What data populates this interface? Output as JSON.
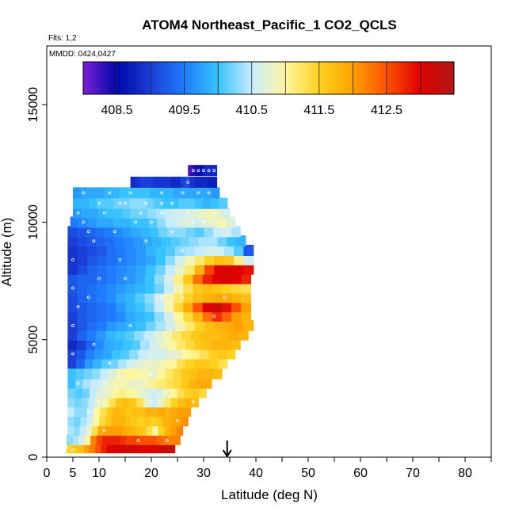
{
  "chart_data": {
    "type": "heatmap",
    "title": "ATOM4 Northeast_Pacific_1 CO2_QCLS",
    "flights_label": "Flts: 1,2",
    "dates_label": "MMDD: 0424,0427",
    "xlabel": "Latitude (deg N)",
    "ylabel": "Altitude (m)",
    "xlim": [
      0,
      85
    ],
    "ylim": [
      0,
      17500
    ],
    "x_ticks": [
      0,
      10,
      20,
      30,
      40,
      50,
      60,
      70,
      80
    ],
    "x_tick_labels": [
      "0",
      "5",
      "10",
      "20",
      "30",
      "40",
      "50",
      "60",
      "70",
      "80"
    ],
    "x_tick_label_values": [
      0,
      5,
      10,
      20,
      30,
      40,
      50,
      60,
      70,
      80
    ],
    "y_ticks": [
      0,
      5000,
      10000,
      15000
    ],
    "y_tick_labels": [
      "0",
      "5000",
      "10000",
      "15000"
    ],
    "colorbar": {
      "min": 408.0,
      "max": 413.5,
      "tick_values": [
        408.5,
        409.5,
        410.5,
        411.5,
        412.5
      ],
      "tick_labels": [
        "408.5",
        "409.5",
        "410.5",
        "411.5",
        "412.5"
      ],
      "colors": [
        "#7a1fd6",
        "#0008a8",
        "#1a3fd9",
        "#1f7cff",
        "#36c3ff",
        "#c8ecff",
        "#fff6a0",
        "#ffd21f",
        "#ffa000",
        "#ff5200",
        "#e00000",
        "#b01818"
      ]
    },
    "arrow_latitude": 34.5,
    "bands": [
      {
        "alt": 400,
        "lat_min": 3.8,
        "lat_max": 24.5,
        "values": [
          411.5,
          411.6,
          411.7,
          412.0,
          412.2,
          412.5,
          412.8,
          413.0,
          413.0,
          413.1,
          413.2,
          413.2,
          413.1,
          413.0,
          413.0,
          413.1,
          413.2,
          413.3,
          413.3
        ]
      },
      {
        "alt": 750,
        "lat_min": 3.8,
        "lat_max": 25.5,
        "values": [
          410.3,
          410.4,
          410.6,
          411.0,
          412.2,
          412.6,
          412.8,
          412.8,
          412.8,
          412.7,
          412.6,
          412.6,
          412.5,
          412.5,
          412.5,
          412.4,
          412.3,
          412.2,
          412.2
        ]
      },
      {
        "alt": 1150,
        "lat_min": 4.0,
        "lat_max": 26.0,
        "values": [
          410.4,
          410.3,
          410.5,
          410.8,
          411.3,
          411.9,
          412.0,
          412.0,
          412.0,
          411.9,
          411.8,
          411.7,
          411.6,
          411.3,
          411.0,
          411.5,
          411.8,
          412.0,
          412.2
        ]
      },
      {
        "alt": 1550,
        "lat_min": 4.0,
        "lat_max": 27.0,
        "values": [
          410.3,
          410.2,
          410.4,
          410.6,
          411.0,
          411.4,
          411.6,
          411.8,
          411.8,
          411.7,
          411.6,
          411.5,
          411.6,
          411.5,
          411.6,
          411.8,
          411.9,
          412.0,
          412.1
        ]
      },
      {
        "alt": 1950,
        "lat_min": 4.0,
        "lat_max": 27.5,
        "values": [
          410.5,
          410.3,
          410.3,
          410.5,
          411.0,
          411.3,
          411.6,
          411.8,
          411.7,
          411.6,
          411.7,
          411.7,
          411.8,
          411.8,
          411.9,
          411.8,
          411.9,
          412.0,
          412.0
        ]
      },
      {
        "alt": 2350,
        "lat_min": 4.0,
        "lat_max": 29.0,
        "values": [
          410.3,
          410.2,
          410.3,
          410.5,
          410.8,
          410.9,
          411.3,
          411.6,
          411.7,
          411.6,
          411.3,
          410.8,
          410.5,
          410.8,
          411.2,
          411.5,
          411.7,
          411.8,
          411.7
        ]
      },
      {
        "alt": 2750,
        "lat_min": 4.0,
        "lat_max": 30.5,
        "values": [
          410.2,
          410.1,
          410.2,
          410.5,
          410.7,
          410.8,
          411.0,
          411.1,
          411.0,
          410.9,
          410.7,
          410.6,
          410.6,
          410.8,
          411.0,
          411.3,
          411.5,
          411.6,
          411.4
        ]
      },
      {
        "alt": 3150,
        "lat_min": 4.0,
        "lat_max": 31.5,
        "values": [
          410.0,
          410.2,
          410.4,
          410.5,
          410.6,
          410.8,
          410.9,
          410.9,
          410.8,
          410.8,
          410.9,
          411.1,
          411.2,
          411.3,
          411.4,
          411.6,
          411.8,
          411.9,
          411.9
        ]
      },
      {
        "alt": 3550,
        "lat_min": 4.0,
        "lat_max": 33.5,
        "values": [
          410.0,
          410.1,
          410.2,
          410.3,
          410.5,
          410.7,
          410.9,
          411.0,
          411.0,
          410.9,
          410.8,
          411.0,
          411.2,
          411.4,
          411.6,
          411.7,
          411.8,
          411.8,
          411.7
        ]
      },
      {
        "alt": 4000,
        "lat_min": 4.0,
        "lat_max": 34.5,
        "values": [
          409.0,
          409.3,
          409.7,
          409.9,
          410.1,
          410.2,
          410.4,
          410.6,
          410.7,
          410.8,
          410.8,
          410.9,
          411.0,
          411.3,
          411.5,
          411.6,
          411.6,
          411.5,
          411.3
        ]
      },
      {
        "alt": 4400,
        "lat_min": 4.0,
        "lat_max": 36.0,
        "values": [
          409.0,
          409.2,
          409.5,
          409.7,
          409.8,
          410.0,
          410.1,
          410.3,
          410.5,
          410.6,
          410.6,
          410.7,
          410.8,
          411.0,
          411.1,
          411.3,
          411.5,
          411.6,
          411.5
        ]
      },
      {
        "alt": 4800,
        "lat_min": 4.0,
        "lat_max": 37.0,
        "values": [
          408.8,
          409.0,
          409.3,
          409.6,
          409.8,
          409.9,
          410.0,
          410.1,
          410.4,
          410.6,
          410.8,
          411.0,
          411.2,
          411.4,
          411.6,
          411.7,
          411.8,
          411.8,
          411.7
        ]
      },
      {
        "alt": 5200,
        "lat_min": 4.0,
        "lat_max": 38.5,
        "values": [
          409.0,
          409.3,
          409.5,
          409.7,
          409.9,
          410.0,
          410.1,
          410.3,
          410.5,
          410.7,
          410.9,
          411.2,
          411.4,
          411.6,
          411.7,
          411.7,
          411.8,
          411.9,
          411.8
        ]
      },
      {
        "alt": 5600,
        "lat_min": 4.0,
        "lat_max": 39.5,
        "values": [
          409.0,
          409.2,
          409.4,
          409.5,
          409.7,
          409.8,
          409.9,
          410.0,
          410.2,
          410.4,
          410.6,
          410.9,
          411.2,
          411.5,
          411.7,
          411.8,
          411.9,
          412.0,
          411.8
        ]
      },
      {
        "alt": 6000,
        "lat_min": 4.0,
        "lat_max": 39.0,
        "values": [
          409.0,
          409.2,
          409.3,
          409.4,
          409.5,
          409.6,
          409.8,
          409.9,
          410.0,
          410.3,
          410.6,
          411.0,
          411.4,
          411.8,
          412.3,
          412.7,
          412.4,
          412.0,
          411.8
        ]
      },
      {
        "alt": 6400,
        "lat_min": 4.0,
        "lat_max": 39.0,
        "values": [
          409.1,
          409.2,
          409.3,
          409.4,
          409.5,
          409.7,
          409.9,
          410.0,
          410.2,
          410.5,
          410.9,
          411.4,
          411.9,
          412.5,
          413.0,
          413.2,
          412.9,
          412.5,
          412.0
        ]
      },
      {
        "alt": 6800,
        "lat_min": 4.0,
        "lat_max": 39.0,
        "values": [
          409.1,
          409.3,
          409.4,
          409.5,
          409.6,
          409.8,
          409.9,
          410.1,
          410.3,
          410.6,
          410.9,
          411.2,
          411.5,
          411.7,
          411.8,
          411.9,
          411.9,
          411.8,
          411.7
        ]
      },
      {
        "alt": 7200,
        "lat_min": 4.0,
        "lat_max": 39.0,
        "values": [
          409.2,
          409.3,
          409.4,
          409.5,
          409.6,
          409.7,
          409.8,
          409.9,
          410.0,
          410.2,
          410.5,
          410.9,
          411.3,
          411.6,
          411.7,
          411.6,
          411.5,
          411.4,
          411.3
        ]
      },
      {
        "alt": 7600,
        "lat_min": 4.0,
        "lat_max": 39.0,
        "values": [
          409.2,
          409.3,
          409.3,
          409.4,
          409.5,
          409.6,
          409.7,
          409.8,
          410.0,
          410.3,
          410.6,
          411.1,
          411.6,
          412.3,
          412.8,
          413.0,
          413.1,
          413.0,
          412.8
        ]
      },
      {
        "alt": 8000,
        "lat_min": 4.0,
        "lat_max": 39.5,
        "values": [
          408.9,
          409.1,
          409.3,
          409.4,
          409.5,
          409.6,
          409.7,
          409.8,
          410.0,
          410.2,
          410.5,
          410.8,
          411.2,
          411.8,
          412.6,
          413.0,
          413.1,
          413.0,
          412.9
        ]
      },
      {
        "alt": 8400,
        "lat_min": 4.0,
        "lat_max": 39.5,
        "values": [
          408.9,
          409.0,
          409.2,
          409.3,
          409.4,
          409.5,
          409.6,
          409.7,
          409.8,
          410.0,
          410.3,
          410.6,
          410.9,
          411.2,
          411.5,
          411.7,
          411.6,
          411.1,
          410.6
        ]
      },
      {
        "alt": 8800,
        "lat_min": 4.0,
        "lat_max": 39.5,
        "values": [
          408.9,
          409.0,
          409.1,
          409.2,
          409.4,
          409.5,
          409.6,
          409.7,
          409.9,
          410.0,
          410.1,
          410.3,
          410.4,
          410.5,
          410.6,
          410.6,
          410.4,
          410.1,
          409.2
        ]
      },
      {
        "alt": 9200,
        "lat_min": 4.0,
        "lat_max": 38.0,
        "values": [
          409.0,
          409.1,
          409.2,
          409.3,
          409.4,
          409.5,
          409.6,
          409.7,
          409.8,
          409.9,
          410.0,
          410.1,
          410.2,
          410.3,
          410.4,
          410.4,
          410.2,
          410.0,
          409.9
        ]
      },
      {
        "alt": 9600,
        "lat_min": 4.0,
        "lat_max": 37.0,
        "values": [
          409.1,
          409.2,
          409.3,
          409.4,
          409.5,
          409.6,
          409.7,
          409.8,
          409.9,
          410.0,
          410.2,
          410.3,
          410.3,
          410.2,
          410.1,
          410.3,
          410.5,
          410.6,
          410.4
        ]
      },
      {
        "alt": 10000,
        "lat_min": 4.5,
        "lat_max": 36.0,
        "values": [
          409.5,
          409.6,
          409.7,
          409.8,
          409.8,
          409.9,
          409.9,
          410.0,
          410.0,
          410.1,
          410.3,
          410.5,
          410.6,
          410.7,
          410.6,
          410.7,
          410.8,
          410.9,
          410.7
        ]
      },
      {
        "alt": 10400,
        "lat_min": 5.0,
        "lat_max": 35.0,
        "values": [
          409.7,
          409.8,
          409.8,
          409.9,
          410.0,
          410.0,
          410.1,
          410.2,
          410.2,
          410.3,
          410.4,
          410.5,
          410.6,
          410.6,
          410.7,
          410.8,
          410.9,
          410.8,
          410.6
        ]
      },
      {
        "alt": 10800,
        "lat_min": 5.0,
        "lat_max": 34.5,
        "values": [
          409.9,
          409.9,
          410.0,
          410.1,
          410.1,
          410.2,
          410.2,
          410.3,
          410.3,
          410.2,
          410.1,
          410.0,
          410.0,
          410.1,
          410.1,
          410.0,
          409.9,
          410.0,
          410.1
        ]
      },
      {
        "alt": 11250,
        "lat_min": 5.0,
        "lat_max": 33.0,
        "values": [
          409.7,
          409.8,
          409.8,
          409.8,
          409.9,
          409.9,
          410.0,
          410.0,
          410.0,
          410.0,
          409.9,
          409.9,
          409.9,
          409.8,
          409.8,
          409.8,
          409.8,
          409.8,
          409.7
        ]
      },
      {
        "alt": 11700,
        "lat_min": 16.0,
        "lat_max": 32.5,
        "values": [
          408.8,
          408.9,
          409.0,
          409.0,
          409.0,
          408.9,
          408.9,
          408.9,
          408.9,
          408.8,
          408.8,
          409.0,
          409.1,
          408.9,
          408.8,
          408.8,
          408.8,
          408.7,
          408.7
        ]
      },
      {
        "alt": 12200,
        "lat_min": 27.0,
        "lat_max": 32.5,
        "values": [
          408.2,
          408.3,
          408.4,
          408.5,
          408.6,
          408.7,
          408.8,
          408.8,
          408.8,
          408.8
        ]
      }
    ],
    "obs_points": [
      [
        3.8,
        400
      ],
      [
        5,
        300
      ],
      [
        17.5,
        700
      ],
      [
        23,
        700
      ],
      [
        11,
        1150
      ],
      [
        8,
        1950
      ],
      [
        10,
        2350
      ],
      [
        20,
        2350
      ],
      [
        25,
        1550
      ],
      [
        28,
        2350
      ],
      [
        6,
        3150
      ],
      [
        11,
        3150
      ],
      [
        20,
        3550
      ],
      [
        5,
        4400
      ],
      [
        5,
        5600
      ],
      [
        9,
        4800
      ],
      [
        12,
        4000
      ],
      [
        16,
        5600
      ],
      [
        6,
        6400
      ],
      [
        8,
        6800
      ],
      [
        5,
        7200
      ],
      [
        10,
        7600
      ],
      [
        15,
        7600
      ],
      [
        22,
        6800
      ],
      [
        26,
        6800
      ],
      [
        32,
        6000
      ],
      [
        34,
        6800
      ],
      [
        5,
        8400
      ],
      [
        14,
        8400
      ],
      [
        9,
        9200
      ],
      [
        19,
        9200
      ],
      [
        26,
        8800
      ],
      [
        8,
        9600
      ],
      [
        13,
        9600
      ],
      [
        17,
        10000
      ],
      [
        22,
        10400
      ],
      [
        24,
        9600
      ],
      [
        28,
        10000
      ],
      [
        6,
        10400
      ],
      [
        10,
        10800
      ],
      [
        14,
        10800
      ],
      [
        18,
        10400
      ],
      [
        20,
        10000
      ],
      [
        22,
        10800
      ],
      [
        27,
        10400
      ],
      [
        30,
        10000
      ],
      [
        32,
        10400
      ],
      [
        7,
        11250
      ],
      [
        12,
        11250
      ],
      [
        16,
        11250
      ],
      [
        22,
        11250
      ],
      [
        26,
        11250
      ],
      [
        29,
        11250
      ],
      [
        31,
        11250
      ],
      [
        27,
        11700
      ],
      [
        28,
        12200
      ],
      [
        29,
        12200
      ],
      [
        30,
        12200
      ],
      [
        31,
        12200
      ],
      [
        32,
        12200
      ],
      [
        7,
        10000
      ],
      [
        11,
        10400
      ],
      [
        15,
        10800
      ],
      [
        19,
        10800
      ],
      [
        24,
        10800
      ]
    ]
  }
}
